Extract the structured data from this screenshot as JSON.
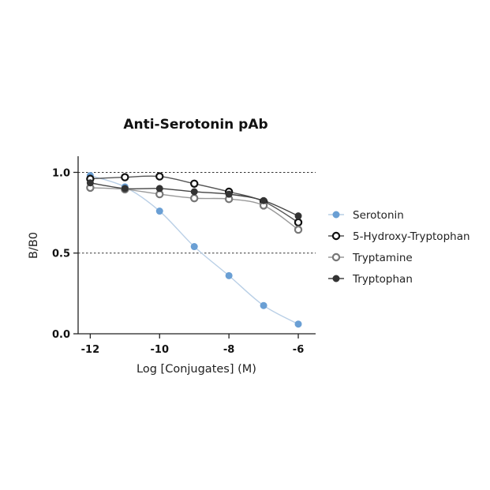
{
  "chart_data": {
    "type": "scatter",
    "title": "Anti-Serotonin pAb",
    "xlabel": "Log [Conjugates] (M)",
    "ylabel": "B/B0",
    "xlim": [
      -12.35,
      -5.5
    ],
    "ylim": [
      0,
      1.1
    ],
    "xticks": [
      -12,
      -10,
      -8,
      -6
    ],
    "xtick_labels": [
      "-12",
      "-10",
      "-8",
      "-6"
    ],
    "yticks": [
      0,
      0.5,
      1
    ],
    "ytick_labels": [
      "0.0",
      "0.5",
      "1.0"
    ],
    "reference_lines_y": [
      0.5,
      1.0
    ],
    "grid": false,
    "legend_position": "right",
    "series": [
      {
        "name": "Serotonin",
        "color": "#6a9fd4",
        "line_color": "#b9cfe6",
        "marker": "filled-circle",
        "x": [
          -12,
          -11,
          -10,
          -9,
          -8,
          -7,
          -6
        ],
        "y": [
          0.98,
          0.91,
          0.76,
          0.54,
          0.36,
          0.175,
          0.06
        ]
      },
      {
        "name": "5-Hydroxy-Tryptophan",
        "color": "#111111",
        "line_color": "#555555",
        "marker": "open-circle",
        "x": [
          -12,
          -11,
          -10,
          -9,
          -8,
          -7,
          -6
        ],
        "y": [
          0.96,
          0.97,
          0.975,
          0.93,
          0.88,
          0.82,
          0.69
        ]
      },
      {
        "name": "Tryptamine",
        "color": "#777777",
        "line_color": "#999999",
        "marker": "open-circle",
        "x": [
          -12,
          -11,
          -10,
          -9,
          -8,
          -7,
          -6
        ],
        "y": [
          0.905,
          0.895,
          0.865,
          0.84,
          0.835,
          0.795,
          0.645
        ]
      },
      {
        "name": "Tryptophan",
        "color": "#333333",
        "line_color": "#444444",
        "marker": "filled-circle",
        "x": [
          -12,
          -11,
          -10,
          -9,
          -8,
          -7,
          -6
        ],
        "y": [
          0.935,
          0.9,
          0.9,
          0.88,
          0.865,
          0.825,
          0.73
        ]
      }
    ]
  }
}
